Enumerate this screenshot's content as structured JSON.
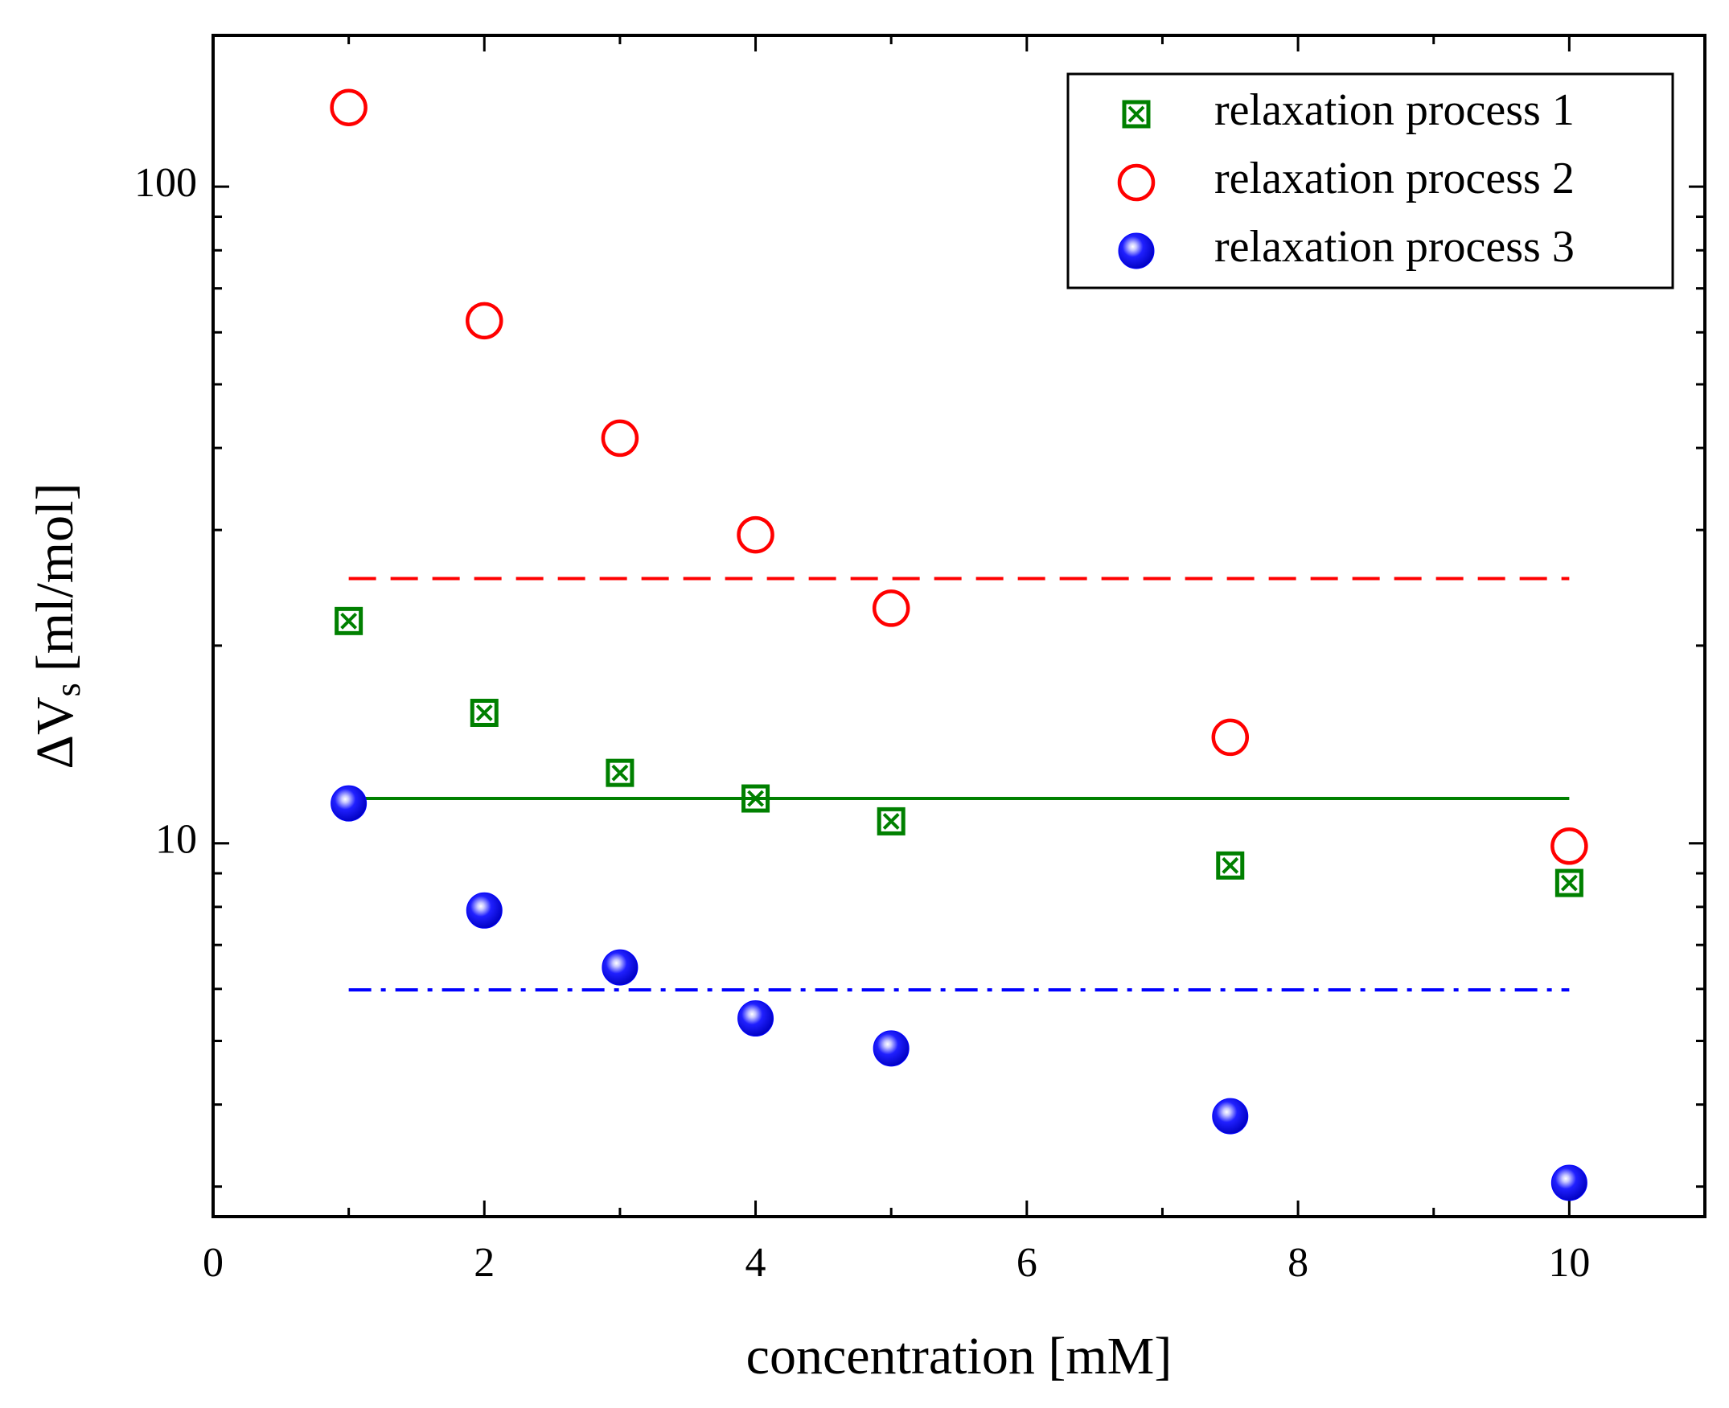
{
  "chart_data": {
    "type": "scatter",
    "xlabel": "concentration [mM]",
    "ylabel": {
      "main": "ΔV",
      "sub": "s",
      "unit": "[ml/mol]"
    },
    "xlim": [
      0,
      11
    ],
    "xticks": [
      0,
      2,
      4,
      6,
      8,
      10
    ],
    "xminorticks": [
      1,
      3,
      5,
      7,
      9,
      11
    ],
    "ylim": [
      2.7,
      170
    ],
    "yscale": "log",
    "yticks": [
      10,
      100
    ],
    "yminorticks": [
      3,
      4,
      5,
      6,
      7,
      8,
      9,
      20,
      30,
      40,
      50,
      60,
      70,
      80,
      90
    ],
    "legend": "upper right",
    "series": [
      {
        "name": "relaxation process 1",
        "color": "#008000",
        "marker": "crossed-square",
        "x": [
          1,
          2,
          3,
          4,
          5,
          7.5,
          10
        ],
        "values": [
          21.8,
          15.8,
          12.8,
          11.7,
          10.8,
          9.25,
          8.7
        ]
      },
      {
        "name": "relaxation process 2",
        "color": "#ff0000",
        "marker": "open-circle",
        "x": [
          1,
          2,
          3,
          4,
          5,
          7.5,
          10
        ],
        "values": [
          132,
          62.5,
          41.4,
          29.5,
          22.8,
          14.5,
          9.9
        ]
      },
      {
        "name": "relaxation process 3",
        "color": "#0000ff",
        "marker": "ball",
        "x": [
          1,
          2,
          3,
          4,
          5,
          7.5,
          10
        ],
        "values": [
          11.5,
          7.9,
          6.47,
          5.41,
          4.87,
          3.84,
          3.04
        ]
      }
    ],
    "reference_lines": [
      {
        "color": "#ff0000",
        "style": "dashed",
        "x": [
          1,
          10
        ],
        "values": [
          25.3,
          25.3
        ]
      },
      {
        "color": "#008000",
        "style": "solid",
        "x": [
          1,
          10
        ],
        "values": [
          11.7,
          11.7
        ]
      },
      {
        "color": "#0000ff",
        "style": "dashdot",
        "x": [
          1,
          10
        ],
        "values": [
          5.98,
          5.98
        ]
      }
    ]
  }
}
